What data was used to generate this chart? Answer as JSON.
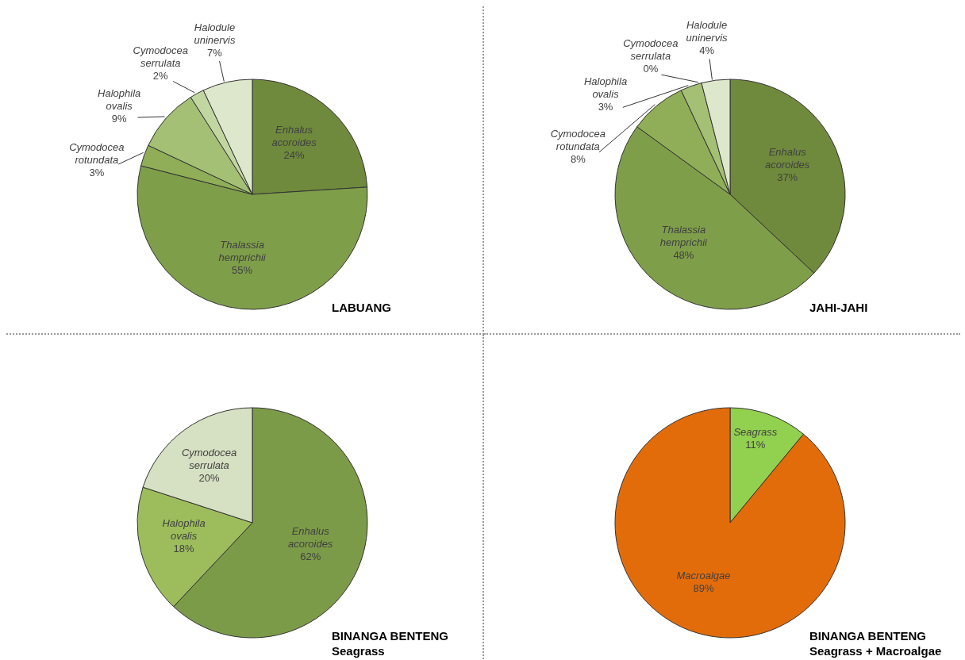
{
  "chart_data": [
    {
      "type": "pie",
      "title": "LABUANG",
      "categories": [
        "Enhalus acoroides",
        "Thalassia hemprichii",
        "Cymodocea rotundata",
        "Halophila ovalis",
        "Cymodocea serrulata",
        "Halodule uninervis"
      ],
      "values": [
        24,
        55,
        3,
        9,
        2,
        7
      ],
      "colors": [
        "#6f8a3c",
        "#7f9e4a",
        "#8fae57",
        "#a4c074",
        "#c2d6a2",
        "#dde7cb"
      ],
      "value_labels": [
        "24%",
        "55%",
        "3%",
        "9%",
        "2%",
        "7%"
      ]
    },
    {
      "type": "pie",
      "title": "JAHI-JAHI",
      "categories": [
        "Enhalus acoroides",
        "Thalassia hemprichii",
        "Cymodocea rotundata",
        "Halophila ovalis",
        "Cymodocea serrulata",
        "Halodule uninervis"
      ],
      "values": [
        37,
        48,
        8,
        3,
        0,
        4
      ],
      "colors": [
        "#6f8a3c",
        "#7f9e4a",
        "#8fae57",
        "#a4c074",
        "#c2d6a2",
        "#dde7cb"
      ],
      "value_labels": [
        "37%",
        "48%",
        "8%",
        "3%",
        "0%",
        "4%"
      ]
    },
    {
      "type": "pie",
      "title": "BINANGA BENTENG",
      "subtitle": "Seagrass",
      "categories": [
        "Enhalus acoroides",
        "Halophila ovalis",
        "Cymodocea serrulata"
      ],
      "values": [
        62,
        18,
        20
      ],
      "colors": [
        "#7c9b48",
        "#9dbd5c",
        "#d6e0c2"
      ],
      "value_labels": [
        "62%",
        "18%",
        "20%"
      ]
    },
    {
      "type": "pie",
      "title": "BINANGA BENTENG",
      "subtitle": "Seagrass + Macroalgae",
      "categories": [
        "Seagrass",
        "Macroalgae"
      ],
      "values": [
        11,
        89
      ],
      "colors": [
        "#92d050",
        "#e36c0a"
      ],
      "value_labels": [
        "11%",
        "89%"
      ]
    }
  ]
}
